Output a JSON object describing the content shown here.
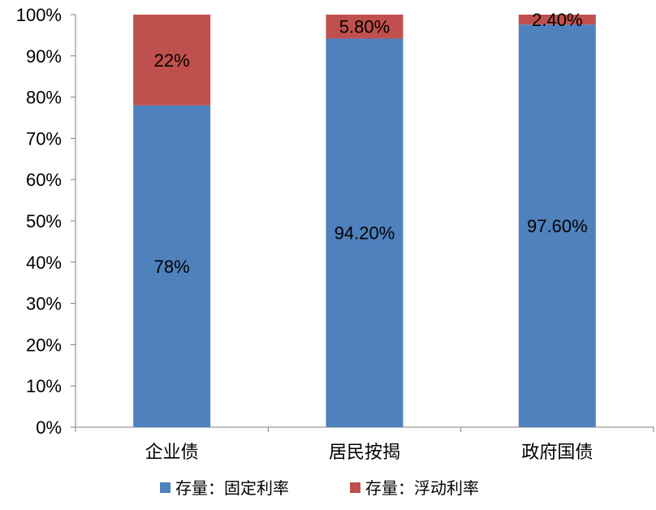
{
  "chart_data": {
    "type": "bar",
    "stacked": true,
    "categories": [
      "企业债",
      "居民按揭",
      "政府国债"
    ],
    "series": [
      {
        "name": "存量：固定利率",
        "values": [
          78,
          94.2,
          97.6
        ],
        "labels": [
          "78%",
          "94.20%",
          "97.60%"
        ],
        "color": "#4F81BD"
      },
      {
        "name": "存量：浮动利率",
        "values": [
          22,
          5.8,
          2.4
        ],
        "labels": [
          "22%",
          "5.80%",
          "2.40%"
        ],
        "color": "#C0504D"
      }
    ],
    "yticks": [
      "0%",
      "10%",
      "20%",
      "30%",
      "40%",
      "50%",
      "60%",
      "70%",
      "80%",
      "90%",
      "100%"
    ],
    "ylim": [
      0,
      100
    ],
    "grid": false,
    "legend_position": "bottom"
  }
}
